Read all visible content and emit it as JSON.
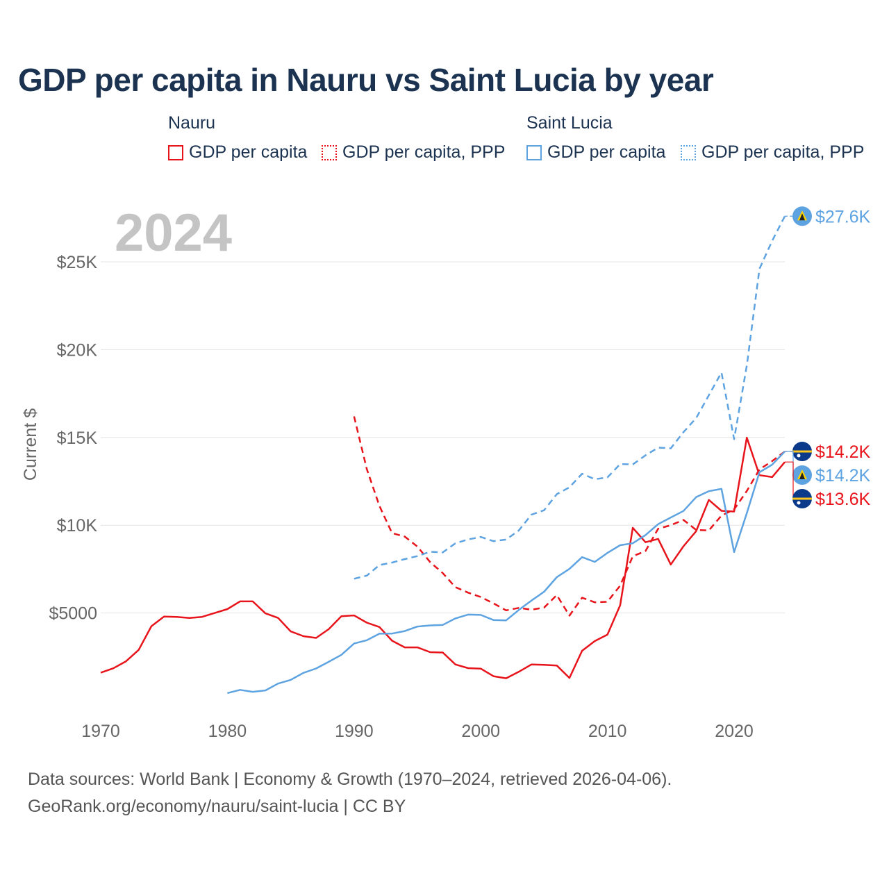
{
  "chart_data": {
    "type": "line",
    "title": "GDP per capita in Nauru vs Saint Lucia by year",
    "ylabel": "Current $",
    "xlabel": "",
    "year_label": "2024",
    "xlim": [
      1970,
      2024
    ],
    "ylim": [
      0,
      25000
    ],
    "x_ticks": [
      1970,
      1980,
      1990,
      2000,
      2010,
      2020
    ],
    "y_ticks": [
      {
        "value": 5000,
        "label": "$5000"
      },
      {
        "value": 10000,
        "label": "$10K"
      },
      {
        "value": 15000,
        "label": "$15K"
      },
      {
        "value": 20000,
        "label": "$20K"
      },
      {
        "value": 25000,
        "label": "$25K"
      }
    ],
    "legend": {
      "groups": [
        {
          "country": "Nauru",
          "items": [
            "GDP per capita",
            "GDP per capita, PPP"
          ]
        },
        {
          "country": "Saint Lucia",
          "items": [
            "GDP per capita",
            "GDP per capita, PPP"
          ]
        }
      ]
    },
    "colors": {
      "nauru": "#e8141b",
      "saint_lucia": "#5ea3e1"
    },
    "series": [
      {
        "name": "Nauru GDP per capita",
        "country": "nauru",
        "style": "solid",
        "start_year": 1970,
        "values": [
          1600,
          1850,
          2250,
          2900,
          4250,
          4800,
          4780,
          4720,
          4780,
          5000,
          5220,
          5660,
          5660,
          4980,
          4720,
          3950,
          3680,
          3580,
          4080,
          4820,
          4860,
          4450,
          4200,
          3420,
          3040,
          3040,
          2770,
          2750,
          2070,
          1860,
          1830,
          1400,
          1280,
          1650,
          2070,
          2050,
          2010,
          1300,
          2850,
          3400,
          3770,
          5440,
          9850,
          9030,
          9220,
          7760,
          8800,
          9660,
          11440,
          10820,
          10780,
          14990,
          12850,
          12740,
          13600
        ],
        "end_label": "$13.6K"
      },
      {
        "name": "Nauru GDP per capita, PPP",
        "country": "nauru",
        "style": "dashed",
        "start_year": 1990,
        "values": [
          16200,
          13200,
          11100,
          9550,
          9350,
          8780,
          7900,
          7270,
          6470,
          6160,
          5910,
          5550,
          5150,
          5290,
          5190,
          5310,
          6020,
          4850,
          5870,
          5610,
          5640,
          6560,
          8230,
          8530,
          9800,
          10000,
          10300,
          9730,
          9700,
          10550,
          10900,
          11950,
          13180,
          13650,
          14200
        ],
        "end_label": "$14.2K"
      },
      {
        "name": "Saint Lucia GDP per capita",
        "country": "saint_lucia",
        "style": "solid",
        "start_year": 1980,
        "values": [
          440,
          620,
          510,
          590,
          980,
          1190,
          1590,
          1840,
          2220,
          2620,
          3260,
          3450,
          3820,
          3830,
          3970,
          4230,
          4290,
          4320,
          4690,
          4910,
          4890,
          4600,
          4580,
          5170,
          5710,
          6210,
          7040,
          7510,
          8180,
          7910,
          8420,
          8860,
          8970,
          9440,
          10060,
          10440,
          10810,
          11600,
          11940,
          12070,
          8470,
          10690,
          13020,
          13450,
          14200
        ],
        "end_label": "$14.2K"
      },
      {
        "name": "Saint Lucia GDP per capita, PPP",
        "country": "saint_lucia",
        "style": "dashed",
        "start_year": 1990,
        "values": [
          6950,
          7130,
          7730,
          7870,
          8070,
          8240,
          8490,
          8450,
          8970,
          9190,
          9330,
          9090,
          9180,
          9700,
          10600,
          10850,
          11770,
          12160,
          12930,
          12620,
          12720,
          13480,
          13460,
          13980,
          14420,
          14380,
          15300,
          16100,
          17400,
          18700,
          14900,
          19100,
          24600,
          26200,
          27600
        ],
        "end_label": "$27.6K"
      }
    ]
  },
  "footer": {
    "line1": "Data sources: World Bank | Economy & Growth (1970–2024, retrieved 2026-04-06).",
    "line2": "GeoRank.org/economy/nauru/saint-lucia | CC BY"
  }
}
